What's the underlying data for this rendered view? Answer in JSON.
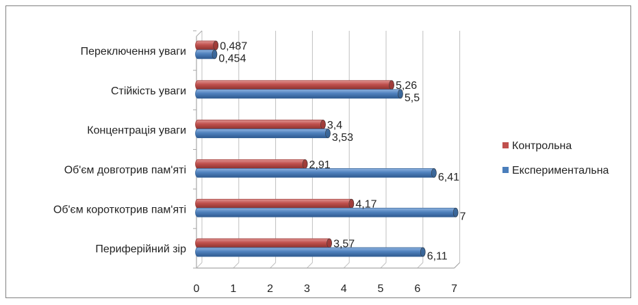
{
  "chart_data": {
    "type": "bar",
    "orientation": "horizontal",
    "categories": [
      "Периферійний зір",
      "Об'єм короткотрив пам'яті",
      "Об'єм довготрив пам'яті",
      "Концентрація уваги",
      "Стійкість уваги",
      "Переключення уваги"
    ],
    "series": [
      {
        "name": "Експериментальна",
        "color": "#4a7ebb",
        "values": [
          6.11,
          7,
          6.41,
          3.53,
          5.5,
          0.454
        ],
        "labels": [
          "6,11",
          "7",
          "6,41",
          "3,53",
          "5,5",
          "0,454"
        ]
      },
      {
        "name": "Контрольна",
        "color": "#c0504d",
        "values": [
          3.57,
          4.17,
          2.91,
          3.4,
          5.26,
          0.487
        ],
        "labels": [
          "3,57",
          "4,17",
          "2,91",
          "3,4",
          "5,26",
          "0,487"
        ]
      }
    ],
    "xlim": [
      0,
      7
    ],
    "xticks": [
      "0",
      "1",
      "2",
      "3",
      "4",
      "5",
      "6",
      "7"
    ],
    "grid": true,
    "legend_position": "right",
    "legend_order": [
      "Контрольна",
      "Експериментальна"
    ]
  }
}
